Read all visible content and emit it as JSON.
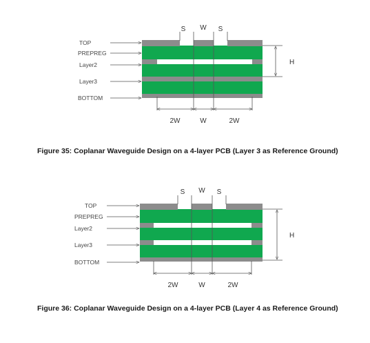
{
  "figures": [
    {
      "layer_labels": [
        "TOP",
        "PREPREG",
        "Layer2",
        "Layer3",
        "BOTTOM"
      ],
      "dims": {
        "s": "S",
        "w": "W",
        "h": "H",
        "two_w": "2W"
      },
      "caption": "Figure 35: Coplanar Waveguide Design on a 4-layer PCB (Layer 3 as Reference Ground)"
    },
    {
      "layer_labels": [
        "TOP",
        "PREPREG",
        "Layer2",
        "Layer3",
        "BOTTOM"
      ],
      "dims": {
        "s": "S",
        "w": "W",
        "h": "H",
        "two_w": "2W"
      },
      "caption": "Figure 36: Coplanar Waveguide Design on a 4-layer PCB (Layer 4 as Reference Ground)"
    }
  ],
  "colors": {
    "dielectric": "#10a84f",
    "copper": "#8c8c8c",
    "gap": "#ffffff",
    "guide": "#555555"
  }
}
